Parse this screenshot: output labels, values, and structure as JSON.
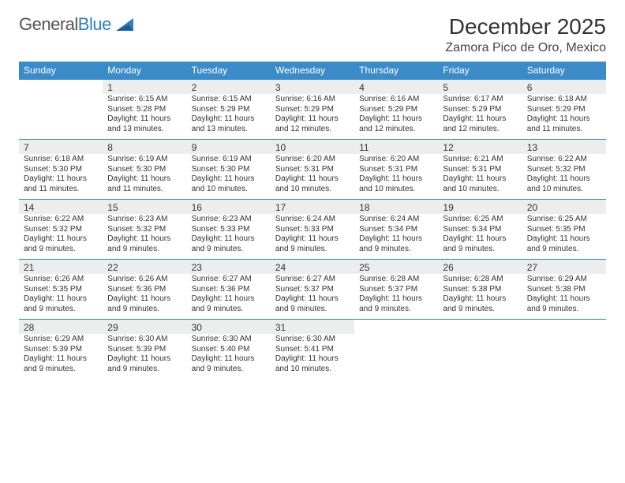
{
  "brand": {
    "part1": "General",
    "part2": "Blue"
  },
  "title": "December 2025",
  "subtitle": "Zamora Pico de Oro, Mexico",
  "header_bg": "#3b8bc8",
  "daynum_bg": "#eceded",
  "border_color": "#2f7fc1",
  "weekdays": [
    "Sunday",
    "Monday",
    "Tuesday",
    "Wednesday",
    "Thursday",
    "Friday",
    "Saturday"
  ],
  "cell_fontsize": "10px",
  "header_fontsize": "12px",
  "grid": [
    [
      {
        "blank": true,
        "num": "",
        "l1": "",
        "l2": "",
        "l3": "",
        "l4": ""
      },
      {
        "num": "1",
        "l1": "Sunrise: 6:15 AM",
        "l2": "Sunset: 5:28 PM",
        "l3": "Daylight: 11 hours",
        "l4": "and 13 minutes."
      },
      {
        "num": "2",
        "l1": "Sunrise: 6:15 AM",
        "l2": "Sunset: 5:29 PM",
        "l3": "Daylight: 11 hours",
        "l4": "and 13 minutes."
      },
      {
        "num": "3",
        "l1": "Sunrise: 6:16 AM",
        "l2": "Sunset: 5:29 PM",
        "l3": "Daylight: 11 hours",
        "l4": "and 12 minutes."
      },
      {
        "num": "4",
        "l1": "Sunrise: 6:16 AM",
        "l2": "Sunset: 5:29 PM",
        "l3": "Daylight: 11 hours",
        "l4": "and 12 minutes."
      },
      {
        "num": "5",
        "l1": "Sunrise: 6:17 AM",
        "l2": "Sunset: 5:29 PM",
        "l3": "Daylight: 11 hours",
        "l4": "and 12 minutes."
      },
      {
        "num": "6",
        "l1": "Sunrise: 6:18 AM",
        "l2": "Sunset: 5:29 PM",
        "l3": "Daylight: 11 hours",
        "l4": "and 11 minutes."
      }
    ],
    [
      {
        "num": "7",
        "l1": "Sunrise: 6:18 AM",
        "l2": "Sunset: 5:30 PM",
        "l3": "Daylight: 11 hours",
        "l4": "and 11 minutes."
      },
      {
        "num": "8",
        "l1": "Sunrise: 6:19 AM",
        "l2": "Sunset: 5:30 PM",
        "l3": "Daylight: 11 hours",
        "l4": "and 11 minutes."
      },
      {
        "num": "9",
        "l1": "Sunrise: 6:19 AM",
        "l2": "Sunset: 5:30 PM",
        "l3": "Daylight: 11 hours",
        "l4": "and 10 minutes."
      },
      {
        "num": "10",
        "l1": "Sunrise: 6:20 AM",
        "l2": "Sunset: 5:31 PM",
        "l3": "Daylight: 11 hours",
        "l4": "and 10 minutes."
      },
      {
        "num": "11",
        "l1": "Sunrise: 6:20 AM",
        "l2": "Sunset: 5:31 PM",
        "l3": "Daylight: 11 hours",
        "l4": "and 10 minutes."
      },
      {
        "num": "12",
        "l1": "Sunrise: 6:21 AM",
        "l2": "Sunset: 5:31 PM",
        "l3": "Daylight: 11 hours",
        "l4": "and 10 minutes."
      },
      {
        "num": "13",
        "l1": "Sunrise: 6:22 AM",
        "l2": "Sunset: 5:32 PM",
        "l3": "Daylight: 11 hours",
        "l4": "and 10 minutes."
      }
    ],
    [
      {
        "num": "14",
        "l1": "Sunrise: 6:22 AM",
        "l2": "Sunset: 5:32 PM",
        "l3": "Daylight: 11 hours",
        "l4": "and 9 minutes."
      },
      {
        "num": "15",
        "l1": "Sunrise: 6:23 AM",
        "l2": "Sunset: 5:32 PM",
        "l3": "Daylight: 11 hours",
        "l4": "and 9 minutes."
      },
      {
        "num": "16",
        "l1": "Sunrise: 6:23 AM",
        "l2": "Sunset: 5:33 PM",
        "l3": "Daylight: 11 hours",
        "l4": "and 9 minutes."
      },
      {
        "num": "17",
        "l1": "Sunrise: 6:24 AM",
        "l2": "Sunset: 5:33 PM",
        "l3": "Daylight: 11 hours",
        "l4": "and 9 minutes."
      },
      {
        "num": "18",
        "l1": "Sunrise: 6:24 AM",
        "l2": "Sunset: 5:34 PM",
        "l3": "Daylight: 11 hours",
        "l4": "and 9 minutes."
      },
      {
        "num": "19",
        "l1": "Sunrise: 6:25 AM",
        "l2": "Sunset: 5:34 PM",
        "l3": "Daylight: 11 hours",
        "l4": "and 9 minutes."
      },
      {
        "num": "20",
        "l1": "Sunrise: 6:25 AM",
        "l2": "Sunset: 5:35 PM",
        "l3": "Daylight: 11 hours",
        "l4": "and 9 minutes."
      }
    ],
    [
      {
        "num": "21",
        "l1": "Sunrise: 6:26 AM",
        "l2": "Sunset: 5:35 PM",
        "l3": "Daylight: 11 hours",
        "l4": "and 9 minutes."
      },
      {
        "num": "22",
        "l1": "Sunrise: 6:26 AM",
        "l2": "Sunset: 5:36 PM",
        "l3": "Daylight: 11 hours",
        "l4": "and 9 minutes."
      },
      {
        "num": "23",
        "l1": "Sunrise: 6:27 AM",
        "l2": "Sunset: 5:36 PM",
        "l3": "Daylight: 11 hours",
        "l4": "and 9 minutes."
      },
      {
        "num": "24",
        "l1": "Sunrise: 6:27 AM",
        "l2": "Sunset: 5:37 PM",
        "l3": "Daylight: 11 hours",
        "l4": "and 9 minutes."
      },
      {
        "num": "25",
        "l1": "Sunrise: 6:28 AM",
        "l2": "Sunset: 5:37 PM",
        "l3": "Daylight: 11 hours",
        "l4": "and 9 minutes."
      },
      {
        "num": "26",
        "l1": "Sunrise: 6:28 AM",
        "l2": "Sunset: 5:38 PM",
        "l3": "Daylight: 11 hours",
        "l4": "and 9 minutes."
      },
      {
        "num": "27",
        "l1": "Sunrise: 6:29 AM",
        "l2": "Sunset: 5:38 PM",
        "l3": "Daylight: 11 hours",
        "l4": "and 9 minutes."
      }
    ],
    [
      {
        "num": "28",
        "l1": "Sunrise: 6:29 AM",
        "l2": "Sunset: 5:39 PM",
        "l3": "Daylight: 11 hours",
        "l4": "and 9 minutes."
      },
      {
        "num": "29",
        "l1": "Sunrise: 6:30 AM",
        "l2": "Sunset: 5:39 PM",
        "l3": "Daylight: 11 hours",
        "l4": "and 9 minutes."
      },
      {
        "num": "30",
        "l1": "Sunrise: 6:30 AM",
        "l2": "Sunset: 5:40 PM",
        "l3": "Daylight: 11 hours",
        "l4": "and 9 minutes."
      },
      {
        "num": "31",
        "l1": "Sunrise: 6:30 AM",
        "l2": "Sunset: 5:41 PM",
        "l3": "Daylight: 11 hours",
        "l4": "and 10 minutes."
      },
      {
        "blank": true,
        "num": "",
        "l1": "",
        "l2": "",
        "l3": "",
        "l4": ""
      },
      {
        "blank": true,
        "num": "",
        "l1": "",
        "l2": "",
        "l3": "",
        "l4": ""
      },
      {
        "blank": true,
        "num": "",
        "l1": "",
        "l2": "",
        "l3": "",
        "l4": ""
      }
    ]
  ]
}
